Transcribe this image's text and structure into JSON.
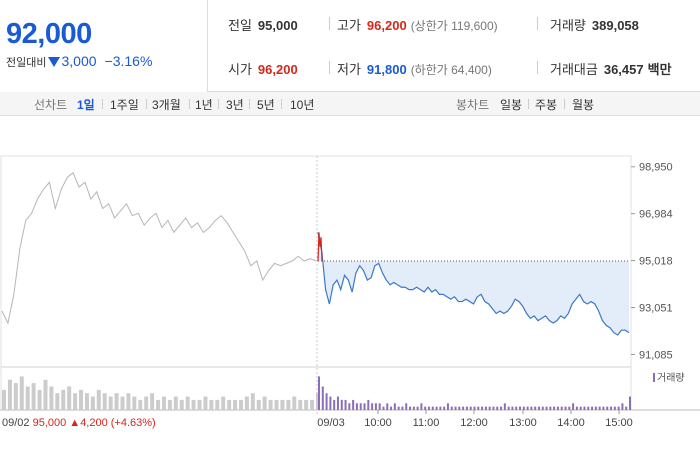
{
  "header": {
    "price": "92,000",
    "change_label": "전일대비",
    "change_value": "3,000",
    "change_pct": "−3.16%",
    "prev_close": {
      "label": "전일",
      "value": "95,000"
    },
    "open": {
      "label": "시가",
      "value": "96,200"
    },
    "high": {
      "label": "고가",
      "value": "96,200",
      "sub": "(상한가 119,600)"
    },
    "low": {
      "label": "저가",
      "value": "91,800",
      "sub": "(하한가 64,400)"
    },
    "volume": {
      "label": "거래량",
      "value": "389,058"
    },
    "amount": {
      "label": "거래대금",
      "value": "36,457",
      "unit": "백만"
    }
  },
  "tabs": {
    "line_title": "선차트",
    "line": [
      "1일",
      "1주일",
      "3개월",
      "1년",
      "3년",
      "5년",
      "10년"
    ],
    "candle_title": "봉차트",
    "candle": [
      "일봉",
      "주봉",
      "월봉"
    ]
  },
  "chart_data": {
    "type": "line",
    "y_ticks": [
      "98,950",
      "96,984",
      "95,018",
      "93,051",
      "91,085"
    ],
    "y_tick_values": [
      98950,
      96984,
      95018,
      93051,
      91085
    ],
    "ylim": [
      90600,
      99400
    ],
    "x_ticks": [
      "09/03",
      "10:00",
      "11:00",
      "12:00",
      "13:00",
      "14:00",
      "15:00"
    ],
    "prev_day_label": "09/02",
    "prev_day_close": "95,000",
    "prev_day_change": "4,200",
    "prev_day_change_pct": "(+4.63%)",
    "volume_legend": "거래량",
    "baseline": 95000,
    "colors": {
      "prev_line": "#b5b5b5",
      "today_line": "#3c78c8",
      "fill": "#e3ecf9",
      "prev_volume": "#cccccc",
      "today_volume": "#8a6fb8",
      "up": "#d7261c",
      "down": "#1a5ad8"
    },
    "prev_day_series": [
      92900,
      92400,
      93600,
      95500,
      96700,
      97000,
      97600,
      98000,
      98300,
      97200,
      98000,
      98500,
      98700,
      98100,
      98300,
      97600,
      97900,
      97200,
      97400,
      96800,
      97100,
      97400,
      96900,
      97000,
      96500,
      96800,
      97000,
      96400,
      96700,
      96200,
      96500,
      96800,
      96400,
      96600,
      96200,
      96400,
      96700,
      96900,
      96600,
      96200,
      95800,
      95400,
      94800,
      95000,
      94200,
      94600,
      94900,
      94800,
      94900,
      95000,
      95200,
      95000,
      95100,
      95000
    ],
    "today_series": [
      96200,
      95400,
      93800,
      93200,
      94000,
      94200,
      93800,
      94400,
      94200,
      93700,
      94500,
      94800,
      94600,
      94200,
      94300,
      94800,
      94900,
      94500,
      94200,
      94000,
      94100,
      94000,
      93900,
      93900,
      93800,
      93800,
      93900,
      93800,
      93700,
      93900,
      93700,
      93800,
      93600,
      93600,
      93500,
      93400,
      93500,
      93300,
      93300,
      93400,
      93300,
      93200,
      93500,
      93600,
      93300,
      93200,
      93000,
      92800,
      92900,
      92800,
      92900,
      93100,
      93400,
      93300,
      93100,
      92800,
      92600,
      92700,
      92500,
      92600,
      92700,
      92500,
      92400,
      92500,
      92700,
      92600,
      92800,
      93200,
      93400,
      93600,
      93300,
      93200,
      93300,
      93200,
      92900,
      92500,
      92300,
      92200,
      92000,
      91900,
      92100,
      92100,
      92000
    ],
    "prev_day_volume": [
      0.6,
      0.9,
      0.8,
      1.0,
      0.7,
      0.8,
      0.6,
      0.9,
      0.7,
      0.5,
      0.6,
      0.7,
      0.5,
      0.6,
      0.5,
      0.4,
      0.6,
      0.5,
      0.4,
      0.5,
      0.4,
      0.5,
      0.4,
      0.3,
      0.4,
      0.5,
      0.3,
      0.4,
      0.3,
      0.4,
      0.3,
      0.4,
      0.3,
      0.3,
      0.4,
      0.3,
      0.3,
      0.4,
      0.3,
      0.3,
      0.3,
      0.4,
      0.5,
      0.3,
      0.4,
      0.3,
      0.3,
      0.3,
      0.3,
      0.4,
      0.3,
      0.3,
      0.3,
      0.5
    ],
    "today_volume": [
      1.0,
      0.7,
      0.5,
      0.4,
      0.3,
      0.4,
      0.3,
      0.3,
      0.2,
      0.3,
      0.2,
      0.2,
      0.2,
      0.3,
      0.2,
      0.2,
      0.2,
      0.1,
      0.2,
      0.1,
      0.2,
      0.1,
      0.1,
      0.2,
      0.1,
      0.1,
      0.1,
      0.2,
      0.1,
      0.1,
      0.1,
      0.1,
      0.1,
      0.1,
      0.2,
      0.1,
      0.1,
      0.1,
      0.1,
      0.1,
      0.1,
      0.1,
      0.1,
      0.1,
      0.1,
      0.1,
      0.1,
      0.1,
      0.1,
      0.2,
      0.1,
      0.1,
      0.1,
      0.1,
      0.1,
      0.1,
      0.1,
      0.1,
      0.1,
      0.1,
      0.1,
      0.1,
      0.1,
      0.1,
      0.1,
      0.1,
      0.1,
      0.2,
      0.1,
      0.1,
      0.1,
      0.1,
      0.1,
      0.1,
      0.1,
      0.1,
      0.1,
      0.1,
      0.1,
      0.1,
      0.2,
      0.1,
      0.4
    ]
  }
}
